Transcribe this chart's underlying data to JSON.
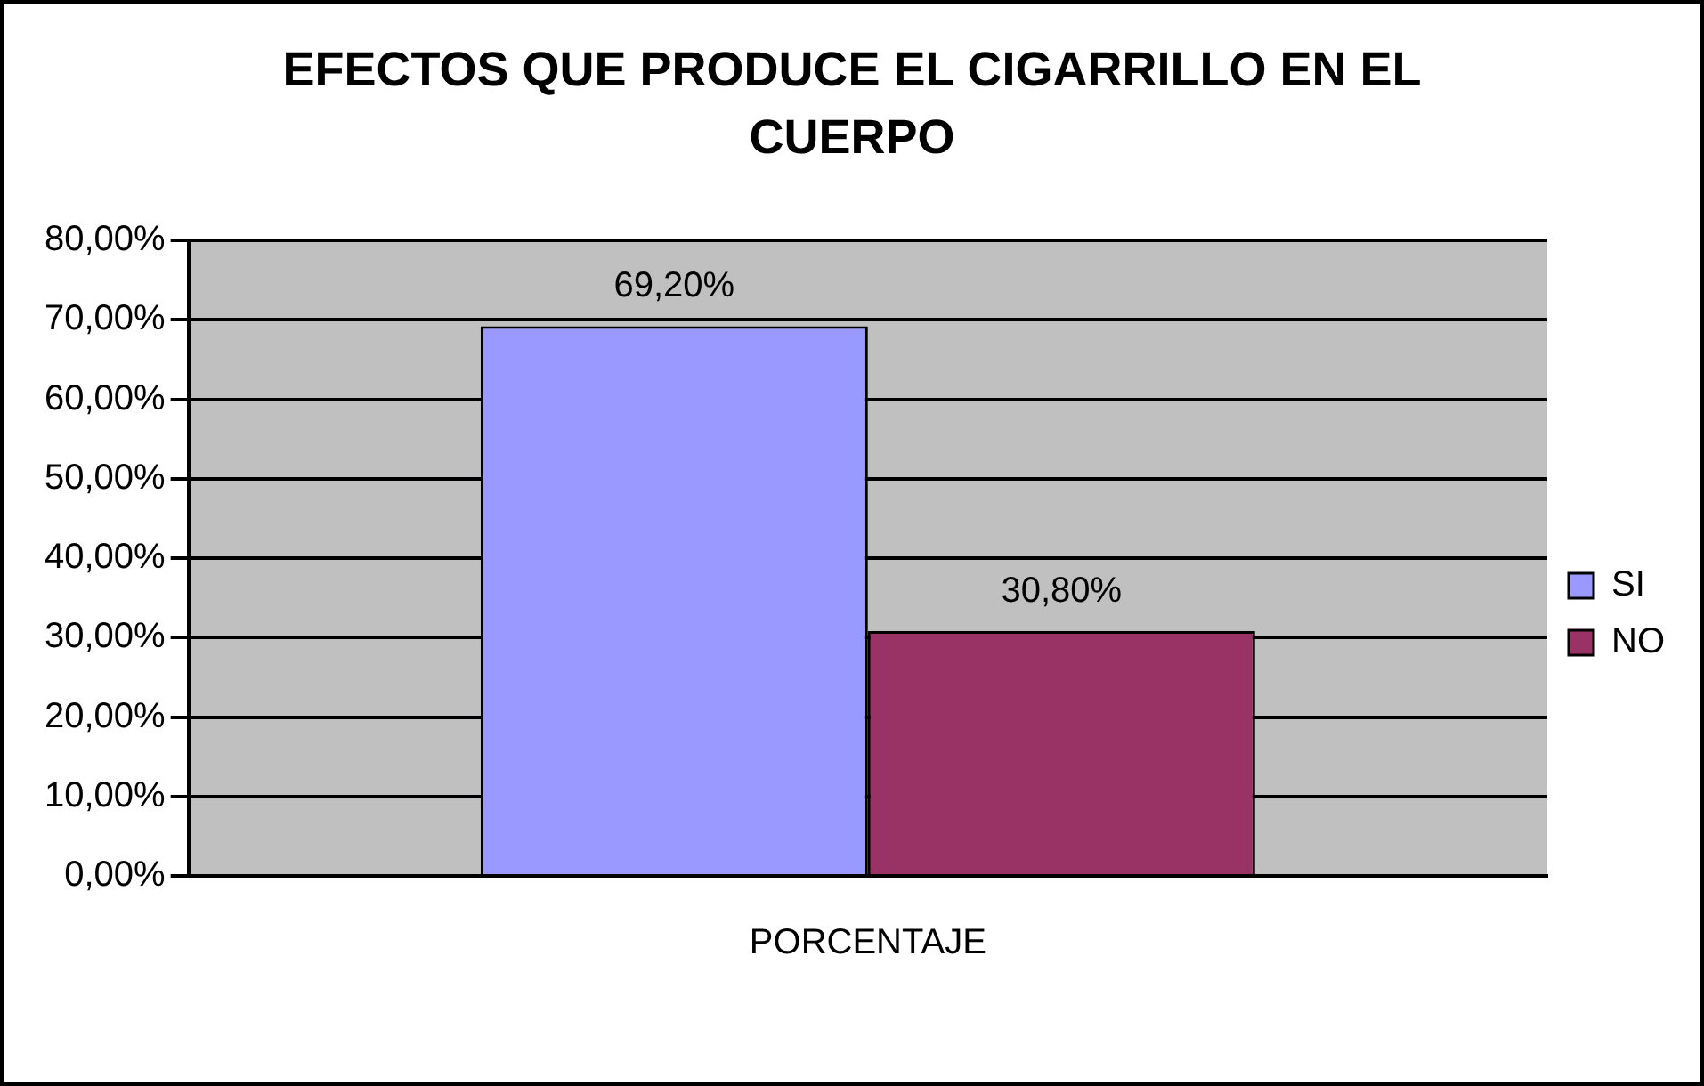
{
  "chart_data": {
    "type": "bar",
    "title": "EFECTOS QUE PRODUCE EL CIGARRILLO EN EL CUERPO",
    "categories": [
      "PORCENTAJE"
    ],
    "series": [
      {
        "name": "SI",
        "color": "#9999ff",
        "values": [
          69.2
        ],
        "value_labels": [
          "69,20%"
        ]
      },
      {
        "name": "NO",
        "color": "#993366",
        "values": [
          30.8
        ],
        "value_labels": [
          "30,80%"
        ]
      }
    ],
    "ylim": [
      0,
      80
    ],
    "yticks": [
      {
        "value": 0,
        "label": "0,00%"
      },
      {
        "value": 10,
        "label": "10,00%"
      },
      {
        "value": 20,
        "label": "20,00%"
      },
      {
        "value": 30,
        "label": "30,00%"
      },
      {
        "value": 40,
        "label": "40,00%"
      },
      {
        "value": 50,
        "label": "50,00%"
      },
      {
        "value": 60,
        "label": "60,00%"
      },
      {
        "value": 70,
        "label": "70,00%"
      },
      {
        "value": 80,
        "label": "80,00%"
      }
    ],
    "grid": "y",
    "legend": "right"
  }
}
